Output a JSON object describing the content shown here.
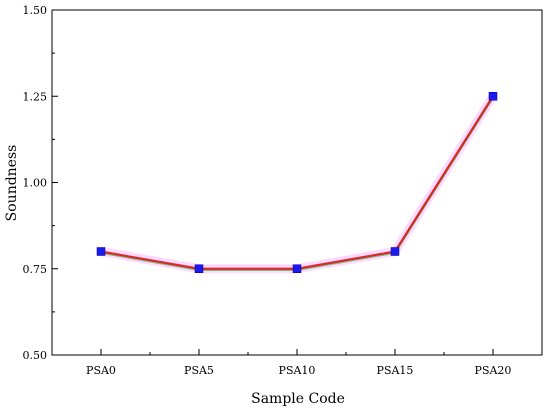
{
  "chart_data": {
    "type": "line",
    "title": "",
    "xlabel": "Sample Code",
    "ylabel": "Soundness",
    "categories": [
      "PSA0",
      "PSA5",
      "PSA10",
      "PSA15",
      "PSA20"
    ],
    "series": [
      {
        "values": [
          0.8,
          0.75,
          0.75,
          0.8,
          1.25
        ]
      }
    ],
    "ylim": [
      0.5,
      1.5
    ],
    "yticks": [
      "0.50",
      "0.75",
      "1.00",
      "1.25",
      "1.50"
    ],
    "grid": false,
    "colors": {
      "line": "#e01010",
      "line_shadow": "#1a9a1a",
      "marker": "#1a1aee",
      "marker_glow": "#ff66ff",
      "axis": "#000000"
    }
  }
}
